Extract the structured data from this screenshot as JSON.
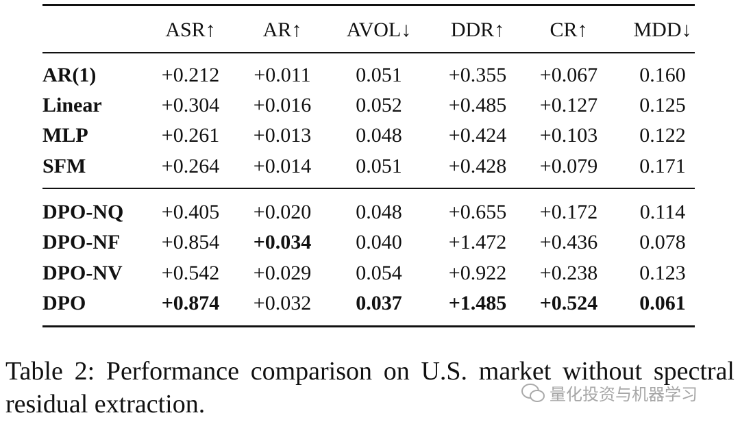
{
  "table": {
    "header": [
      "",
      "ASR↑",
      "AR↑",
      "AVOL↓",
      "DDR↑",
      "CR↑",
      "MDD↓"
    ],
    "groups": [
      [
        [
          "AR(1)",
          "+0.212",
          "+0.011",
          "0.051",
          "+0.355",
          "+0.067",
          "0.160"
        ],
        [
          "Linear",
          "+0.304",
          "+0.016",
          "0.052",
          "+0.485",
          "+0.127",
          "0.125"
        ],
        [
          "MLP",
          "+0.261",
          "+0.013",
          "0.048",
          "+0.424",
          "+0.103",
          "0.122"
        ],
        [
          "SFM",
          "+0.264",
          "+0.014",
          "0.051",
          "+0.428",
          "+0.079",
          "0.171"
        ]
      ],
      [
        [
          "DPO-NQ",
          "+0.405",
          "+0.020",
          "0.048",
          "+0.655",
          "+0.172",
          "0.114"
        ],
        [
          "DPO-NF",
          "+0.854",
          "+0.034",
          "0.040",
          "+1.472",
          "+0.436",
          "0.078"
        ],
        [
          "DPO-NV",
          "+0.542",
          "+0.029",
          "0.054",
          "+0.922",
          "+0.238",
          "0.123"
        ],
        [
          "DPO",
          "+0.874",
          "+0.032",
          "0.037",
          "+1.485",
          "+0.524",
          "0.061"
        ]
      ]
    ]
  },
  "caption": "Table 2: Performance comparison on U.S. market without spectral residual extraction.",
  "watermark": "量化投资与机器学习"
}
